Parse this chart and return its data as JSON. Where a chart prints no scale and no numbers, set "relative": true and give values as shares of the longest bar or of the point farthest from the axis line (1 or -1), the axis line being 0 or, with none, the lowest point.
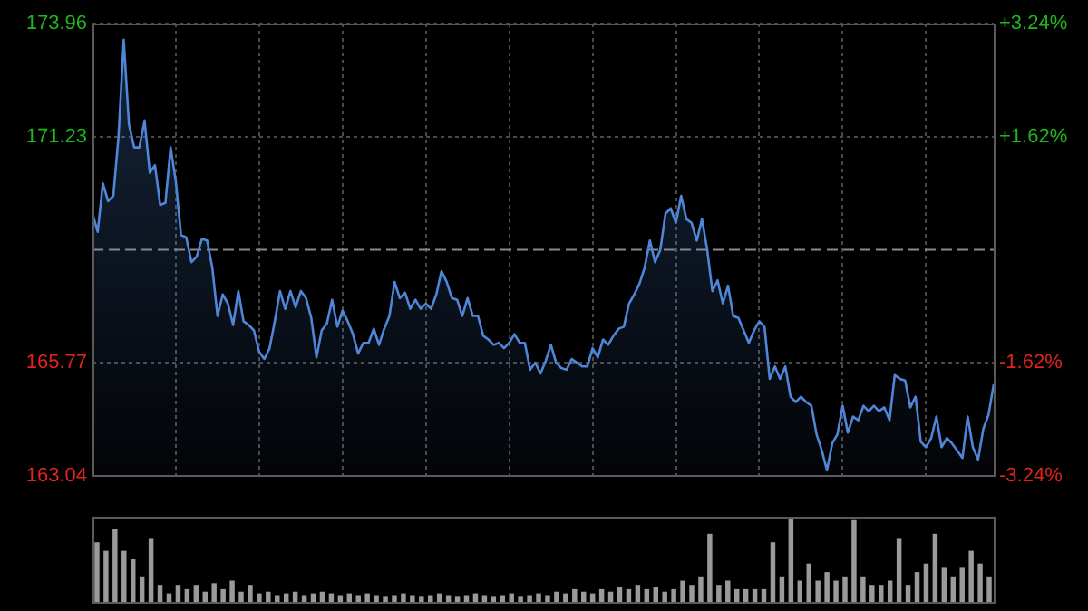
{
  "chart_data": [
    {
      "type": "area",
      "color": "#4f86d8",
      "marker": "none",
      "line_style": "solid",
      "grid": true,
      "legend": false,
      "tick_labels": "y",
      "categories": [
        null,
        null,
        null,
        null,
        null,
        null,
        null,
        null,
        null,
        null,
        null,
        null,
        null,
        null,
        null,
        null,
        null,
        null,
        null,
        null,
        null,
        null,
        null,
        null,
        null,
        null,
        null,
        null,
        null,
        null,
        null,
        null,
        null,
        null,
        null,
        null,
        null,
        null,
        null,
        null,
        null,
        null,
        null,
        null,
        null,
        null,
        null,
        null,
        null,
        null,
        null,
        null,
        null,
        null,
        null,
        null,
        null,
        null,
        null,
        null,
        null,
        null,
        null,
        null,
        null,
        null,
        null,
        null,
        null,
        null,
        null,
        null,
        null,
        null,
        null,
        null,
        null,
        null,
        null,
        null,
        null,
        null,
        null,
        null,
        null,
        null,
        null,
        null,
        null,
        null,
        null,
        null,
        null,
        null,
        null,
        null,
        null,
        null,
        null,
        null,
        null,
        null,
        null,
        null,
        null,
        null,
        null,
        null,
        null,
        null,
        null,
        null,
        null,
        null,
        null,
        null,
        null,
        null,
        null,
        null,
        null,
        null,
        null,
        null,
        null,
        null,
        null,
        null,
        null,
        null,
        null,
        null,
        null,
        null,
        null,
        null,
        null,
        null,
        null,
        null,
        null,
        null,
        null,
        null,
        null,
        null,
        null,
        null,
        null,
        null,
        null,
        null,
        null,
        null,
        null,
        null,
        null,
        null,
        null,
        null,
        null,
        null,
        null,
        null,
        null,
        null,
        null,
        null,
        null,
        null,
        null,
        null,
        null,
        null
      ],
      "ylim": [
        163.04,
        173.96
      ],
      "yticks": [
        163.04,
        165.77,
        171.23,
        173.96
      ],
      "y2lim": [
        -3.24,
        3.24
      ],
      "y2ticks": [
        {
          "value": -3.24,
          "label": "-3.24%"
        },
        {
          "value": -1.62,
          "label": "-1.62%"
        },
        {
          "value": 1.62,
          "label": "+1.62%"
        },
        {
          "value": 3.24,
          "label": "+3.24%"
        }
      ],
      "ref_lines": [
        {
          "axis": "y",
          "value": 168.5,
          "color": "#8a8a8a",
          "line_style": "dashed"
        }
      ],
      "values": [
        169.37,
        168.93,
        170.1,
        169.67,
        169.8,
        171.23,
        173.57,
        171.53,
        170.97,
        170.97,
        171.62,
        170.36,
        170.54,
        169.58,
        169.63,
        170.97,
        170.15,
        168.85,
        168.8,
        168.2,
        168.33,
        168.76,
        168.72,
        168.07,
        166.9,
        167.42,
        167.2,
        166.68,
        167.5,
        166.77,
        166.68,
        166.55,
        166.03,
        165.86,
        166.12,
        166.77,
        167.5,
        167.07,
        167.5,
        167.11,
        167.5,
        167.33,
        166.85,
        165.9,
        166.55,
        166.72,
        167.29,
        166.64,
        167.03,
        166.77,
        166.46,
        165.99,
        166.25,
        166.25,
        166.59,
        166.2,
        166.59,
        166.9,
        167.72,
        167.33,
        167.46,
        167.07,
        167.29,
        167.07,
        167.2,
        167.07,
        167.42,
        167.98,
        167.72,
        167.33,
        167.29,
        166.9,
        167.33,
        166.9,
        166.9,
        166.42,
        166.33,
        166.2,
        166.25,
        166.12,
        166.25,
        166.46,
        166.25,
        166.25,
        165.6,
        165.77,
        165.51,
        165.81,
        166.2,
        165.77,
        165.64,
        165.6,
        165.86,
        165.77,
        165.68,
        165.68,
        166.12,
        165.9,
        166.33,
        166.2,
        166.42,
        166.59,
        166.64,
        167.2,
        167.42,
        167.68,
        168.07,
        168.72,
        168.2,
        168.5,
        169.37,
        169.5,
        169.15,
        169.8,
        169.24,
        169.15,
        168.72,
        169.24,
        168.5,
        167.5,
        167.76,
        167.2,
        167.63,
        166.9,
        166.85,
        166.55,
        166.25,
        166.55,
        166.77,
        166.64,
        165.38,
        165.68,
        165.38,
        165.68,
        164.95,
        164.82,
        164.95,
        164.82,
        164.73,
        164.04,
        163.65,
        163.17,
        163.82,
        164.04,
        164.73,
        164.08,
        164.47,
        164.38,
        164.73,
        164.6,
        164.73,
        164.6,
        164.69,
        164.38,
        165.47,
        165.38,
        165.34,
        164.69,
        164.95,
        163.86,
        163.73,
        163.95,
        164.47,
        163.73,
        163.95,
        163.82,
        163.65,
        163.47,
        164.47,
        163.73,
        163.43,
        164.17,
        164.51,
        165.25
      ]
    },
    {
      "type": "bar",
      "relative": true,
      "color": "#9a9a9a",
      "legend": false,
      "grid": false,
      "tick_labels": false,
      "categories": [
        null,
        null,
        null,
        null,
        null,
        null,
        null,
        null,
        null,
        null,
        null,
        null,
        null,
        null,
        null,
        null,
        null,
        null,
        null,
        null,
        null,
        null,
        null,
        null,
        null,
        null,
        null,
        null,
        null,
        null,
        null,
        null,
        null,
        null,
        null,
        null,
        null,
        null,
        null,
        null,
        null,
        null,
        null,
        null,
        null,
        null,
        null,
        null,
        null,
        null,
        null,
        null,
        null,
        null,
        null,
        null,
        null,
        null,
        null,
        null,
        null,
        null,
        null,
        null,
        null,
        null,
        null,
        null,
        null,
        null,
        null,
        null,
        null,
        null,
        null,
        null,
        null,
        null,
        null,
        null,
        null,
        null,
        null,
        null,
        null,
        null,
        null,
        null,
        null,
        null,
        null,
        null,
        null,
        null,
        null,
        null,
        null,
        null,
        null,
        null
      ],
      "values": [
        0.7,
        0.6,
        0.86,
        0.6,
        0.5,
        0.3,
        0.74,
        0.2,
        0.1,
        0.2,
        0.15,
        0.2,
        0.12,
        0.22,
        0.15,
        0.25,
        0.12,
        0.2,
        0.1,
        0.12,
        0.08,
        0.1,
        0.12,
        0.08,
        0.1,
        0.12,
        0.1,
        0.08,
        0.1,
        0.08,
        0.1,
        0.08,
        0.06,
        0.08,
        0.1,
        0.08,
        0.06,
        0.08,
        0.1,
        0.08,
        0.06,
        0.08,
        0.1,
        0.08,
        0.06,
        0.08,
        0.1,
        0.06,
        0.08,
        0.1,
        0.08,
        0.12,
        0.1,
        0.15,
        0.12,
        0.1,
        0.15,
        0.12,
        0.18,
        0.15,
        0.2,
        0.15,
        0.18,
        0.12,
        0.15,
        0.25,
        0.2,
        0.3,
        0.8,
        0.2,
        0.25,
        0.15,
        0.15,
        0.15,
        0.15,
        0.7,
        0.3,
        1.0,
        0.25,
        0.45,
        0.25,
        0.35,
        0.25,
        0.3,
        0.96,
        0.3,
        0.2,
        0.2,
        0.25,
        0.74,
        0.2,
        0.35,
        0.45,
        0.8,
        0.4,
        0.3,
        0.4,
        0.6,
        0.45,
        0.3
      ]
    }
  ]
}
